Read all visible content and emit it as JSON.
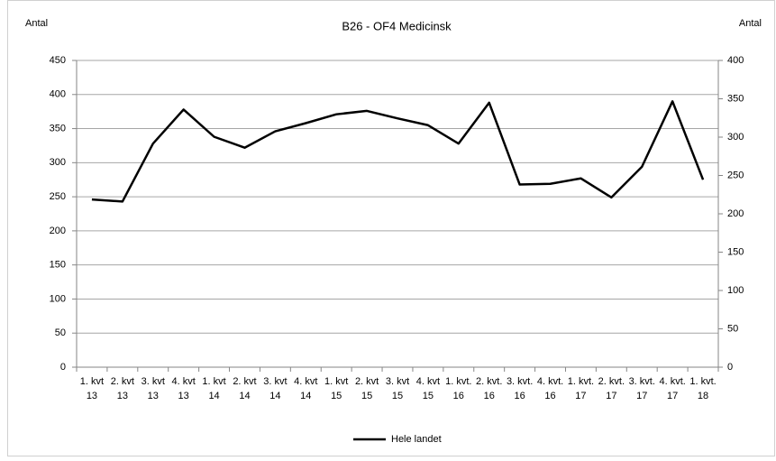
{
  "chart_data": {
    "type": "line",
    "title": "B26 - OF4 Medicinsk",
    "y_label": "Antal",
    "y2_label": "Antal",
    "categories": [
      [
        "1. kvt",
        "13"
      ],
      [
        "2. kvt",
        "13"
      ],
      [
        "3. kvt",
        "13"
      ],
      [
        "4. kvt",
        "13"
      ],
      [
        "1. kvt",
        "14"
      ],
      [
        "2. kvt",
        "14"
      ],
      [
        "3. kvt",
        "14"
      ],
      [
        "4. kvt",
        "14"
      ],
      [
        "1. kvt",
        "15"
      ],
      [
        "2. kvt",
        "15"
      ],
      [
        "3. kvt",
        "15"
      ],
      [
        "4. kvt",
        "15"
      ],
      [
        "1. kvt.",
        "16"
      ],
      [
        "2. kvt.",
        "16"
      ],
      [
        "3. kvt.",
        "16"
      ],
      [
        "4. kvt.",
        "16"
      ],
      [
        "1. kvt.",
        "17"
      ],
      [
        "2. kvt.",
        "17"
      ],
      [
        "3. kvt.",
        "17"
      ],
      [
        "4. kvt.",
        "17"
      ],
      [
        "1. kvt.",
        "18"
      ]
    ],
    "series": [
      {
        "name": "Hele landet",
        "color": "#000000",
        "values": [
          246,
          243,
          328,
          378,
          338,
          322,
          346,
          358,
          371,
          376,
          365,
          355,
          328,
          388,
          268,
          269,
          277,
          249,
          294,
          390,
          275
        ]
      }
    ],
    "ylim": [
      0,
      450
    ],
    "yticks": [
      0,
      50,
      100,
      150,
      200,
      250,
      300,
      350,
      400,
      450
    ],
    "y2lim": [
      0,
      400
    ],
    "y2ticks": [
      0,
      50,
      100,
      150,
      200,
      250,
      300,
      350,
      400
    ],
    "grid": true,
    "legend": "bottom"
  }
}
